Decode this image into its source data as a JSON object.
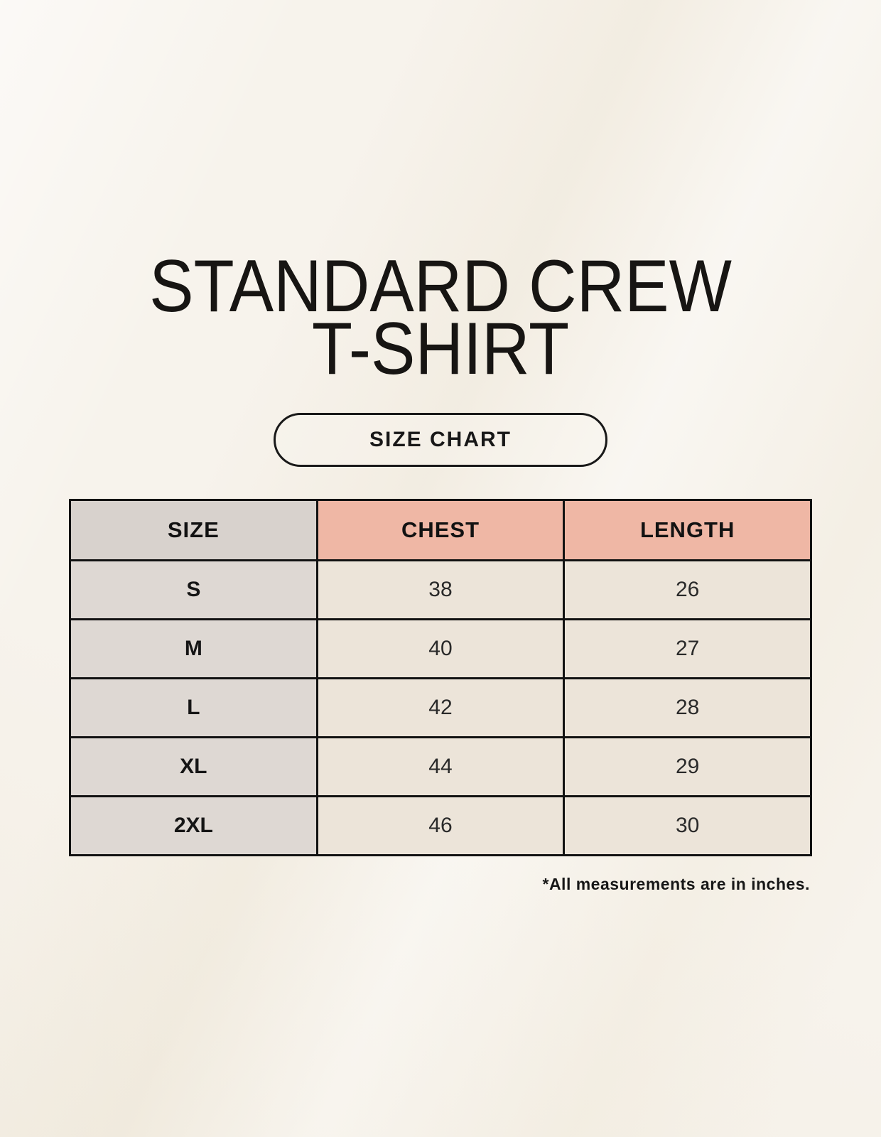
{
  "title": {
    "line1": "STANDARD CREW",
    "line2": "T-SHIRT"
  },
  "badge": {
    "label": "SIZE CHART"
  },
  "table": {
    "columns": [
      "SIZE",
      "CHEST",
      "LENGTH"
    ],
    "rows": [
      {
        "size": "S",
        "chest": "38",
        "length": "26"
      },
      {
        "size": "M",
        "chest": "40",
        "length": "27"
      },
      {
        "size": "L",
        "chest": "42",
        "length": "28"
      },
      {
        "size": "XL",
        "chest": "44",
        "length": "29"
      },
      {
        "size": "2XL",
        "chest": "46",
        "length": "30"
      }
    ]
  },
  "footnote": "*All measurements are in inches.",
  "colors": {
    "page_background": "#f7f3ec",
    "table_border": "#121212",
    "size_header_bg": "#d8d2cd",
    "measure_header_bg": "#efb7a5",
    "size_column_bg": "#ded8d3",
    "value_cell_bg": "#ece4d9",
    "text": "#1a1a1a"
  },
  "chart_data": {
    "type": "table",
    "title": "STANDARD CREW T-SHIRT",
    "subtitle": "SIZE CHART",
    "columns": [
      "SIZE",
      "CHEST",
      "LENGTH"
    ],
    "rows": [
      [
        "S",
        38,
        26
      ],
      [
        "M",
        40,
        27
      ],
      [
        "L",
        42,
        28
      ],
      [
        "XL",
        44,
        29
      ],
      [
        "2XL",
        46,
        30
      ]
    ],
    "units": "inches",
    "footnote": "*All measurements are in inches."
  }
}
